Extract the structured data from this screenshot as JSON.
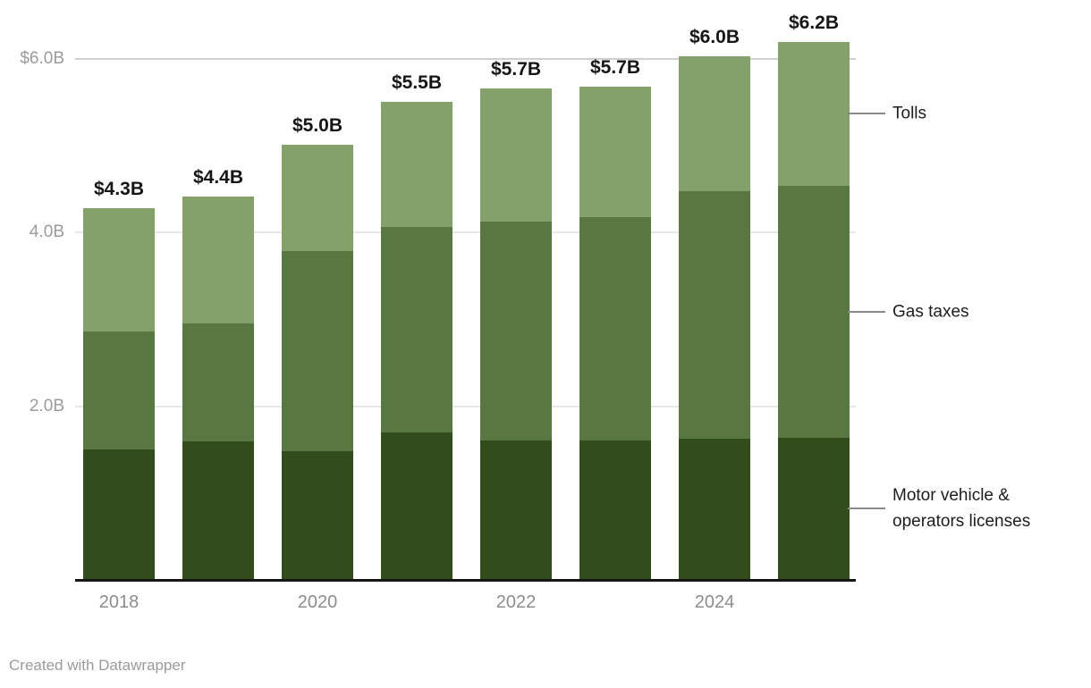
{
  "chart_data": {
    "type": "bar",
    "stacked": true,
    "unit": "$B",
    "categories": [
      "2018",
      "2019",
      "2020",
      "2021",
      "2022",
      "2023",
      "2024",
      "2025"
    ],
    "x_tick_labels": [
      "2018",
      "2020",
      "2022",
      "2024"
    ],
    "series": [
      {
        "name": "Motor vehicle & operators licenses",
        "color": "#324d1b",
        "values": [
          1.5,
          1.6,
          1.48,
          1.7,
          1.61,
          1.61,
          1.63,
          1.64
        ]
      },
      {
        "name": "Gas taxes",
        "color": "#587741",
        "values": [
          1.36,
          1.35,
          2.31,
          2.37,
          2.52,
          2.57,
          2.85,
          2.9
        ]
      },
      {
        "name": "Tolls",
        "color": "#84a169",
        "values": [
          1.42,
          1.47,
          1.22,
          1.44,
          1.53,
          1.5,
          1.55,
          1.66
        ]
      }
    ],
    "total_labels": [
      "$4.3B",
      "$4.4B",
      "$5.0B",
      "$5.5B",
      "$5.7B",
      "$5.7B",
      "$6.0B",
      "$6.2B"
    ],
    "y_ticks": [
      {
        "value": 2.0,
        "label": "2.0B",
        "line_color": "#e7e7e7"
      },
      {
        "value": 4.0,
        "label": "4.0B",
        "line_color": "#e7e7e7"
      },
      {
        "value": 6.0,
        "label": "$6.0B",
        "line_color": "#cfcfcf"
      }
    ],
    "ylim": [
      0,
      6.6
    ],
    "grid": true,
    "legend_position": "right",
    "title": "",
    "xlabel": "",
    "ylabel": ""
  },
  "legend": {
    "items": [
      {
        "series": "Tolls",
        "lines": [
          "Tolls"
        ]
      },
      {
        "series": "Gas taxes",
        "lines": [
          "Gas taxes"
        ]
      },
      {
        "series": "Motor vehicle & operators licenses",
        "lines": [
          "Motor vehicle &",
          "operators licenses"
        ]
      }
    ]
  },
  "footer": {
    "text": "Created with Datawrapper"
  }
}
